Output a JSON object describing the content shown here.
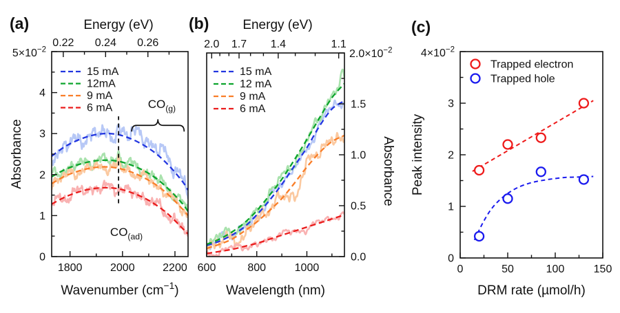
{
  "figure": {
    "background": "#ffffff",
    "text_color": "#111111",
    "panel_letters": [
      "(a)",
      "(b)",
      "(c)"
    ]
  },
  "chart_data": [
    {
      "panel_label": "(a)",
      "type": "line",
      "top_axis": {
        "title": "Energy (eV)",
        "majors": [
          {
            "label": "0.22",
            "x": 1774.3
          },
          {
            "label": "0.24",
            "x": 1935.6
          },
          {
            "label": "0.26",
            "x": 2096.9
          }
        ],
        "minors_x": [
          1854.9,
          2016.2,
          2177.5
        ]
      },
      "x_axis": {
        "label_parts": [
          {
            "t": "Wavenumber (cm"
          },
          {
            "t": "−1",
            "sup": true
          },
          {
            "t": ")"
          }
        ],
        "range": [
          1730,
          2250
        ],
        "majors": [
          {
            "label": "1800",
            "x": 1800
          },
          {
            "label": "2000",
            "x": 2000
          },
          {
            "label": "2200",
            "x": 2200
          }
        ],
        "minors_x": [
          1900,
          2100
        ]
      },
      "y_axis": {
        "label": "Absorbance",
        "side": "left",
        "range": [
          0,
          5
        ],
        "scale_label": {
          "base": "5×10",
          "exp": "−2"
        },
        "majors": [
          {
            "label": "0",
            "v": 0
          },
          {
            "label": "1",
            "v": 1
          },
          {
            "label": "2",
            "v": 2
          },
          {
            "label": "3",
            "v": 3
          },
          {
            "label": "4",
            "v": 4
          },
          {
            "label": "",
            "v": 5
          }
        ],
        "minor_step": 0.5
      },
      "legend": {
        "items": [
          "15 mA",
          "12mA",
          "9 mA",
          "6 mA"
        ]
      },
      "noise_freq_scale": 1.0,
      "series": [
        {
          "name": "15 mA",
          "color": "#2236e0",
          "light": "#b7c8f6",
          "noise_amp": 0.17,
          "seed": 11,
          "x": [
            1730,
            1780,
            1830,
            1880,
            1930,
            1980,
            2030,
            2080,
            2130,
            2180,
            2230,
            2250
          ],
          "y": [
            2.45,
            2.68,
            2.84,
            2.95,
            3.0,
            2.98,
            2.88,
            2.72,
            2.5,
            2.2,
            1.82,
            1.62
          ],
          "bumps": [
            [
              2062,
              0.36,
              26
            ],
            [
              2158,
              0.34,
              24
            ],
            [
              1985,
              0.18,
              6
            ]
          ]
        },
        {
          "name": "12mA",
          "color": "#0ca42c",
          "light": "#a9e2ad",
          "noise_amp": 0.13,
          "seed": 22,
          "x": [
            1730,
            1780,
            1830,
            1880,
            1930,
            1980,
            2030,
            2080,
            2130,
            2180,
            2230,
            2250
          ],
          "y": [
            1.95,
            2.12,
            2.24,
            2.32,
            2.35,
            2.33,
            2.24,
            2.1,
            1.9,
            1.62,
            1.28,
            1.1
          ],
          "bumps": [
            [
              1985,
              0.3,
              5
            ]
          ]
        },
        {
          "name": "9 mA",
          "color": "#f97e28",
          "light": "#fbc9a0",
          "noise_amp": 0.12,
          "seed": 33,
          "x": [
            1730,
            1780,
            1830,
            1880,
            1930,
            1980,
            2030,
            2080,
            2130,
            2180,
            2230,
            2250
          ],
          "y": [
            1.78,
            1.96,
            2.08,
            2.16,
            2.19,
            2.16,
            2.07,
            1.93,
            1.74,
            1.48,
            1.15,
            1.0
          ],
          "bumps": [
            [
              1985,
              0.22,
              5
            ]
          ]
        },
        {
          "name": "6 mA",
          "color": "#ea1c1c",
          "light": "#f9b2b2",
          "noise_amp": 0.13,
          "seed": 44,
          "x": [
            1730,
            1780,
            1830,
            1880,
            1930,
            1980,
            2030,
            2080,
            2130,
            2180,
            2230,
            2250
          ],
          "y": [
            1.28,
            1.45,
            1.57,
            1.65,
            1.68,
            1.66,
            1.57,
            1.44,
            1.25,
            1.0,
            0.68,
            0.55
          ],
          "bumps": [
            [
              1985,
              0.1,
              5
            ]
          ]
        }
      ],
      "annotations": {
        "vline": {
          "x": 1985,
          "y_from": 1.3,
          "y_to": 3.42
        },
        "co_ad": {
          "parts": [
            {
              "t": "CO"
            },
            {
              "t": "(ad)",
              "sub": true
            }
          ],
          "x": 2015,
          "y": 0.5
        },
        "co_g": {
          "parts": [
            {
              "t": "CO"
            },
            {
              "t": "(g)",
              "sub": true
            }
          ],
          "x": 2150,
          "y": 3.62,
          "brace": {
            "x1": 2035,
            "x2": 2235,
            "y_top": 3.35,
            "y_bottom": 3.05
          }
        }
      }
    },
    {
      "panel_label": "(b)",
      "type": "line",
      "top_axis": {
        "title": "Energy (eV)",
        "majors": [
          {
            "label": "2.0",
            "x": 620.0
          },
          {
            "label": "1.7",
            "x": 729.3
          },
          {
            "label": "1.4",
            "x": 885.6
          },
          {
            "label": "1.1",
            "x": 1127.1
          }
        ],
        "minors_x": [
          652.5,
          688.8,
          775.0,
          826.6,
          953.7,
          1033.2
        ]
      },
      "x_axis": {
        "label_parts": [
          {
            "t": "Wavelength (nm)"
          }
        ],
        "range": [
          600,
          1150
        ],
        "majors": [
          {
            "label": "600",
            "x": 600
          },
          {
            "label": "800",
            "x": 800
          },
          {
            "label": "1000",
            "x": 1000
          }
        ],
        "minors_x": [
          700,
          900,
          1100
        ]
      },
      "y_axis": {
        "label": "Absorbance",
        "side": "right",
        "range": [
          0,
          2
        ],
        "scale_label": {
          "base": "2.0×10",
          "exp": "−2"
        },
        "majors": [
          {
            "label": "0.0",
            "v": 0
          },
          {
            "label": "0.5",
            "v": 0.5
          },
          {
            "label": "1.0",
            "v": 1.0
          },
          {
            "label": "1.5",
            "v": 1.5
          },
          {
            "label": "",
            "v": 2.0
          }
        ],
        "minor_step": 0.25
      },
      "legend": {
        "items": [
          "15 mA",
          "12 mA",
          "9 mA",
          "6 mA"
        ]
      },
      "noise_freq_scale": 0.55,
      "series": [
        {
          "name": "15 mA",
          "color": "#2236e0",
          "light": "#b7c8f6",
          "noise_amp": 0.05,
          "seed": 55,
          "x": [
            600,
            650,
            700,
            750,
            800,
            850,
            900,
            950,
            1000,
            1050,
            1100,
            1150
          ],
          "y": [
            0.11,
            0.15,
            0.21,
            0.29,
            0.41,
            0.55,
            0.71,
            0.89,
            1.07,
            1.28,
            1.45,
            1.53
          ],
          "bumps": []
        },
        {
          "name": "12 mA",
          "color": "#0ca42c",
          "light": "#a9e2ad",
          "noise_amp": 0.055,
          "seed": 66,
          "x": [
            600,
            650,
            700,
            750,
            800,
            850,
            900,
            950,
            1000,
            1050,
            1100,
            1150
          ],
          "y": [
            0.12,
            0.17,
            0.24,
            0.33,
            0.45,
            0.6,
            0.76,
            0.95,
            1.15,
            1.36,
            1.56,
            1.7
          ],
          "bumps": [
            [
              1142,
              0.1,
              10
            ]
          ]
        },
        {
          "name": "9 mA",
          "color": "#f97e28",
          "light": "#fbc9a0",
          "noise_amp": 0.075,
          "seed": 77,
          "x": [
            600,
            650,
            700,
            750,
            800,
            850,
            900,
            950,
            1000,
            1050,
            1100,
            1150
          ],
          "y": [
            0.08,
            0.12,
            0.17,
            0.25,
            0.34,
            0.45,
            0.57,
            0.72,
            0.88,
            1.02,
            1.13,
            1.19
          ],
          "bumps": [
            [
              955,
              -0.1,
              18
            ]
          ]
        },
        {
          "name": "6 mA",
          "color": "#ea1c1c",
          "light": "#f9b2b2",
          "noise_amp": 0.035,
          "seed": 88,
          "x": [
            600,
            650,
            700,
            750,
            800,
            850,
            900,
            950,
            1000,
            1050,
            1100,
            1150
          ],
          "y": [
            0.03,
            0.05,
            0.07,
            0.1,
            0.13,
            0.17,
            0.21,
            0.25,
            0.29,
            0.33,
            0.37,
            0.41
          ],
          "bumps": []
        }
      ],
      "annotations": null
    },
    {
      "panel_label": "(c)",
      "type": "scatter",
      "top_axis": null,
      "x_axis": {
        "label_parts": [
          {
            "t": "DRM rate (µmol/h)"
          }
        ],
        "range": [
          0,
          150
        ],
        "majors": [
          {
            "label": "0",
            "x": 0
          },
          {
            "label": "50",
            "x": 50
          },
          {
            "label": "100",
            "x": 100
          },
          {
            "label": "150",
            "x": 150
          }
        ],
        "minors_x": [
          25,
          75,
          125
        ]
      },
      "y_axis": {
        "label": "Peak intensity",
        "side": "left",
        "range": [
          0,
          4
        ],
        "scale_label": {
          "base": "4×10",
          "exp": "−2"
        },
        "majors": [
          {
            "label": "0",
            "v": 0
          },
          {
            "label": "1",
            "v": 1
          },
          {
            "label": "2",
            "v": 2
          },
          {
            "label": "3",
            "v": 3
          },
          {
            "label": "",
            "v": 4
          }
        ],
        "minor_step": 0.5
      },
      "legend": {
        "items": [
          "Trapped electron",
          "Trapped hole"
        ]
      },
      "series": [
        {
          "name": "Trapped electron",
          "color": "#ee1a1a",
          "marker": "circle",
          "x": [
            20,
            50,
            85,
            130
          ],
          "y": [
            1.7,
            2.2,
            2.33,
            3.0
          ],
          "trend_x": [
            13,
            140
          ],
          "trend_y": [
            1.68,
            3.05
          ]
        },
        {
          "name": "Trapped hole",
          "color": "#1a1aee",
          "marker": "circle",
          "x": [
            20,
            50,
            85,
            130
          ],
          "y": [
            0.42,
            1.15,
            1.67,
            1.52
          ],
          "trend_x": [
            15,
            25,
            35,
            47,
            60,
            75,
            92,
            110,
            125,
            140
          ],
          "trend_y": [
            0.35,
            0.72,
            1.0,
            1.21,
            1.36,
            1.46,
            1.52,
            1.56,
            1.57,
            1.58
          ]
        }
      ]
    }
  ]
}
